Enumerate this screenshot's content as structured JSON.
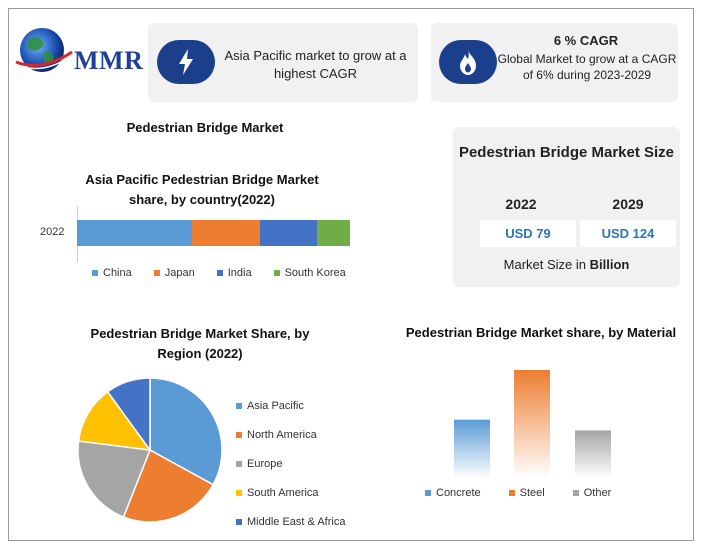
{
  "brand": {
    "logo_text": "MMR"
  },
  "cards": {
    "asia": {
      "text": "Asia Pacific market to grow at a highest CAGR"
    },
    "cagr": {
      "title": "6 % CAGR",
      "text": "Global Market to grow at a CAGR of 6% during 2023-2029"
    }
  },
  "market_title": "Pedestrian Bridge Market",
  "market_size": {
    "title": "Pedestrian Bridge Market Size",
    "years": [
      "2022",
      "2029"
    ],
    "values": [
      "USD 79",
      "USD 124"
    ],
    "note_prefix": "Market Size in ",
    "note_bold": "Billion"
  },
  "colors": {
    "china": "#5b9bd5",
    "japan": "#ed7d31",
    "india": "#4472c4",
    "south_korea": "#70ad47",
    "asia_pacific": "#5b9bd5",
    "north_america": "#ed7d31",
    "europe": "#a5a5a5",
    "south_america": "#ffc000",
    "mea": "#4472c4",
    "concrete": "#5b9bd5",
    "steel": "#ed7d31",
    "other": "#a5a5a5",
    "badge": "#1c3f8c"
  },
  "chart_data": [
    {
      "type": "bar",
      "orientation": "horizontal-stacked",
      "title": "Asia Pacific Pedestrian Bridge Market share, by country(2022)",
      "categories": [
        "2022"
      ],
      "series": [
        {
          "name": "China",
          "values": [
            42
          ]
        },
        {
          "name": "Japan",
          "values": [
            25
          ]
        },
        {
          "name": "India",
          "values": [
            21
          ]
        },
        {
          "name": "South Korea",
          "values": [
            12
          ]
        }
      ],
      "legend": "bottom"
    },
    {
      "type": "pie",
      "title": "Pedestrian Bridge Market Share, by Region (2022)",
      "labels": [
        "Asia Pacific",
        "North America",
        "Europe",
        "South America",
        "Middle East & Africa"
      ],
      "values": [
        33,
        23,
        21,
        13,
        10
      ],
      "legend": "right"
    },
    {
      "type": "bar",
      "title": "Pedestrian Bridge Market share, by Material",
      "categories": [
        "Concrete",
        "Steel",
        "Other"
      ],
      "values": [
        27,
        50,
        22
      ],
      "legend": "bottom"
    }
  ]
}
